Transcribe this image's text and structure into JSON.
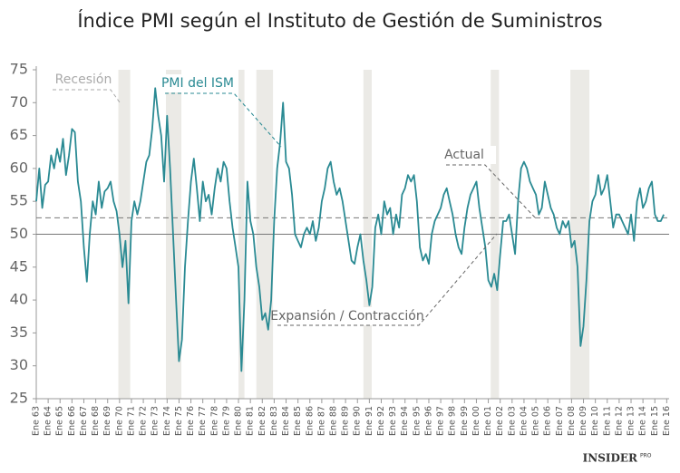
{
  "chart_data": {
    "type": "line",
    "title": "Índice PMI según el Instituto de Gestión de Suministros",
    "x": [
      1963,
      1963.25,
      1963.5,
      1963.75,
      1964,
      1964.25,
      1964.5,
      1964.75,
      1965,
      1965.25,
      1965.5,
      1965.75,
      1966,
      1966.25,
      1966.5,
      1966.75,
      1967,
      1967.25,
      1967.5,
      1967.75,
      1968,
      1968.25,
      1968.5,
      1968.75,
      1969,
      1969.25,
      1969.5,
      1969.75,
      1970,
      1970.25,
      1970.5,
      1970.75,
      1971,
      1971.25,
      1971.5,
      1971.75,
      1972,
      1972.25,
      1972.5,
      1972.75,
      1973,
      1973.25,
      1973.5,
      1973.75,
      1974,
      1974.25,
      1974.5,
      1974.75,
      1975,
      1975.25,
      1975.5,
      1975.75,
      1976,
      1976.25,
      1976.5,
      1976.75,
      1977,
      1977.25,
      1977.5,
      1977.75,
      1978,
      1978.25,
      1978.5,
      1978.75,
      1979,
      1979.25,
      1979.5,
      1979.75,
      1980,
      1980.25,
      1980.5,
      1980.75,
      1981,
      1981.25,
      1981.5,
      1981.75,
      1982,
      1982.25,
      1982.5,
      1982.75,
      1983,
      1983.25,
      1983.5,
      1983.75,
      1984,
      1984.25,
      1984.5,
      1984.75,
      1985,
      1985.25,
      1985.5,
      1985.75,
      1986,
      1986.25,
      1986.5,
      1986.75,
      1987,
      1987.25,
      1987.5,
      1987.75,
      1988,
      1988.25,
      1988.5,
      1988.75,
      1989,
      1989.25,
      1989.5,
      1989.75,
      1990,
      1990.25,
      1990.5,
      1990.75,
      1991,
      1991.25,
      1991.5,
      1991.75,
      1992,
      1992.25,
      1992.5,
      1992.75,
      1993,
      1993.25,
      1993.5,
      1993.75,
      1994,
      1994.25,
      1994.5,
      1994.75,
      1995,
      1995.25,
      1995.5,
      1995.75,
      1996,
      1996.25,
      1996.5,
      1996.75,
      1997,
      1997.25,
      1997.5,
      1997.75,
      1998,
      1998.25,
      1998.5,
      1998.75,
      1999,
      1999.25,
      1999.5,
      1999.75,
      2000,
      2000.25,
      2000.5,
      2000.75,
      2001,
      2001.25,
      2001.5,
      2001.75,
      2002,
      2002.25,
      2002.5,
      2002.75,
      2003,
      2003.25,
      2003.5,
      2003.75,
      2004,
      2004.25,
      2004.5,
      2004.75,
      2005,
      2005.25,
      2005.5,
      2005.75,
      2006,
      2006.25,
      2006.5,
      2006.75,
      2007,
      2007.25,
      2007.5,
      2007.75,
      2008,
      2008.25,
      2008.5,
      2008.75,
      2009,
      2009.25,
      2009.5,
      2009.75,
      2010,
      2010.25,
      2010.5,
      2010.75,
      2011,
      2011.25,
      2011.5,
      2011.75,
      2012,
      2012.25,
      2012.5,
      2012.75,
      2013,
      2013.25,
      2013.5,
      2013.75,
      2014,
      2014.25,
      2014.5,
      2014.75,
      2015,
      2015.25,
      2015.5,
      2015.75
    ],
    "series": [
      {
        "name": "PMI del ISM",
        "color": "#2a8a93",
        "values": [
          55,
          60,
          54,
          57.5,
          58,
          62,
          60,
          63,
          61,
          64.5,
          59,
          62,
          66,
          65.5,
          58,
          55,
          48,
          42.8,
          50,
          55,
          53,
          58,
          54,
          56.5,
          57,
          58,
          55,
          53.5,
          50,
          45,
          49,
          39.5,
          52,
          55,
          53,
          55,
          58,
          61,
          62,
          66,
          72.2,
          68,
          65,
          58,
          68,
          60,
          50,
          40,
          30.7,
          34,
          45,
          52,
          58,
          61.5,
          57,
          52,
          58,
          55,
          56,
          53,
          57,
          60,
          58,
          61,
          60,
          55,
          51,
          48,
          45,
          29.2,
          40,
          58,
          52,
          50,
          45,
          42,
          37,
          38,
          35.5,
          40,
          52,
          60,
          64,
          70,
          61,
          60,
          56,
          50,
          49,
          48,
          50,
          51,
          50,
          52,
          49,
          51,
          55,
          57,
          60,
          61,
          58,
          56,
          57,
          55,
          52,
          49,
          46,
          45.5,
          48,
          50,
          46,
          43,
          39.2,
          42,
          51,
          53,
          50,
          55,
          53,
          54,
          50,
          53,
          51,
          56,
          57,
          59,
          58,
          59,
          55,
          48,
          46,
          47,
          45.5,
          50,
          52,
          53,
          54,
          56,
          57,
          55,
          53,
          50,
          48,
          47,
          51,
          54,
          56,
          57,
          58,
          54,
          51,
          48,
          43,
          42,
          44,
          41.5,
          47,
          52,
          52,
          53,
          50,
          47,
          55,
          60,
          61,
          60,
          58,
          57,
          56,
          53,
          54,
          58,
          56,
          54,
          53,
          51,
          50,
          52,
          51,
          52,
          48,
          49,
          45,
          33,
          36,
          43,
          52,
          55,
          56,
          59,
          56,
          57,
          59,
          55,
          51,
          53,
          53,
          52,
          51,
          50,
          53,
          49,
          55,
          57,
          54,
          55,
          57,
          58,
          53,
          52,
          52,
          53
        ]
      }
    ],
    "xlim": [
      1963,
      2016.2
    ],
    "xticks": [
      {
        "value": 1963,
        "label": "Ene 63"
      },
      {
        "value": 1964,
        "label": "Ene 64"
      },
      {
        "value": 1965,
        "label": "Ene 65"
      },
      {
        "value": 1966,
        "label": "Ene 66"
      },
      {
        "value": 1967,
        "label": "Ene 67"
      },
      {
        "value": 1968,
        "label": "Ene 68"
      },
      {
        "value": 1969,
        "label": "Ene 69"
      },
      {
        "value": 1970,
        "label": "Ene 70"
      },
      {
        "value": 1971,
        "label": "Ene 71"
      },
      {
        "value": 1972,
        "label": "Ene 72"
      },
      {
        "value": 1973,
        "label": "Ene 73"
      },
      {
        "value": 1974,
        "label": "Ene 74"
      },
      {
        "value": 1975,
        "label": "Ene 75"
      },
      {
        "value": 1976,
        "label": "Ene 76"
      },
      {
        "value": 1977,
        "label": "Ene 77"
      },
      {
        "value": 1978,
        "label": "Ene 78"
      },
      {
        "value": 1979,
        "label": "Ene 79"
      },
      {
        "value": 1980,
        "label": "Ene 80"
      },
      {
        "value": 1981,
        "label": "Ene 81"
      },
      {
        "value": 1982,
        "label": "Ene 82"
      },
      {
        "value": 1983,
        "label": "Ene 83"
      },
      {
        "value": 1984,
        "label": "Ene 84"
      },
      {
        "value": 1985,
        "label": "Ene 85"
      },
      {
        "value": 1986,
        "label": "Ene 86"
      },
      {
        "value": 1987,
        "label": "Ene 87"
      },
      {
        "value": 1988,
        "label": "Ene 88"
      },
      {
        "value": 1989,
        "label": "Ene 89"
      },
      {
        "value": 1990,
        "label": "Ene 90"
      },
      {
        "value": 1991,
        "label": "Ene 91"
      },
      {
        "value": 1992,
        "label": "Ene 92"
      },
      {
        "value": 1993,
        "label": "Ene 93"
      },
      {
        "value": 1994,
        "label": "Ene 94"
      },
      {
        "value": 1995,
        "label": "Ene 95"
      },
      {
        "value": 1996,
        "label": "Ene 96"
      },
      {
        "value": 1997,
        "label": "Ene 97"
      },
      {
        "value": 1998,
        "label": "Ene 98"
      },
      {
        "value": 1999,
        "label": "Ene 99"
      },
      {
        "value": 2000,
        "label": "Ene 00"
      },
      {
        "value": 2001,
        "label": "Ene 01"
      },
      {
        "value": 2002,
        "label": "Ene 02"
      },
      {
        "value": 2003,
        "label": "Ene 03"
      },
      {
        "value": 2004,
        "label": "Ene 04"
      },
      {
        "value": 2005,
        "label": "Ene 05"
      },
      {
        "value": 2006,
        "label": "Ene 06"
      },
      {
        "value": 2007,
        "label": "Ene 07"
      },
      {
        "value": 2008,
        "label": "Ene 08"
      },
      {
        "value": 2009,
        "label": "Ene 09"
      },
      {
        "value": 2010,
        "label": "Ene 10"
      },
      {
        "value": 2011,
        "label": "Ene 11"
      },
      {
        "value": 2012,
        "label": "Ene 12"
      },
      {
        "value": 2013,
        "label": "Ene 13"
      },
      {
        "value": 2014,
        "label": "Ene 14"
      },
      {
        "value": 2015,
        "label": "Ene 15"
      },
      {
        "value": 2016,
        "label": "Ene 16"
      }
    ],
    "ylim": [
      25,
      75
    ],
    "yticks": [
      25,
      30,
      35,
      40,
      45,
      50,
      55,
      60,
      65,
      70,
      75
    ],
    "recessions": [
      [
        1969.9,
        1970.9
      ],
      [
        1973.9,
        1975.2
      ],
      [
        1980.0,
        1980.5
      ],
      [
        1981.5,
        1982.9
      ],
      [
        1990.5,
        1991.2
      ],
      [
        2001.2,
        2001.9
      ],
      [
        2007.9,
        2009.5
      ]
    ],
    "recession_color": "#ebeae6",
    "reference_lines": [
      {
        "value": 50,
        "style": "solid"
      },
      {
        "value": 52.5,
        "style": "dashed"
      }
    ],
    "annotations": [
      "Recesión",
      "PMI del ISM",
      "Actual",
      "Expansión / Contracción"
    ],
    "logo": "INSIDER",
    "logo_suffix": "PRO"
  }
}
